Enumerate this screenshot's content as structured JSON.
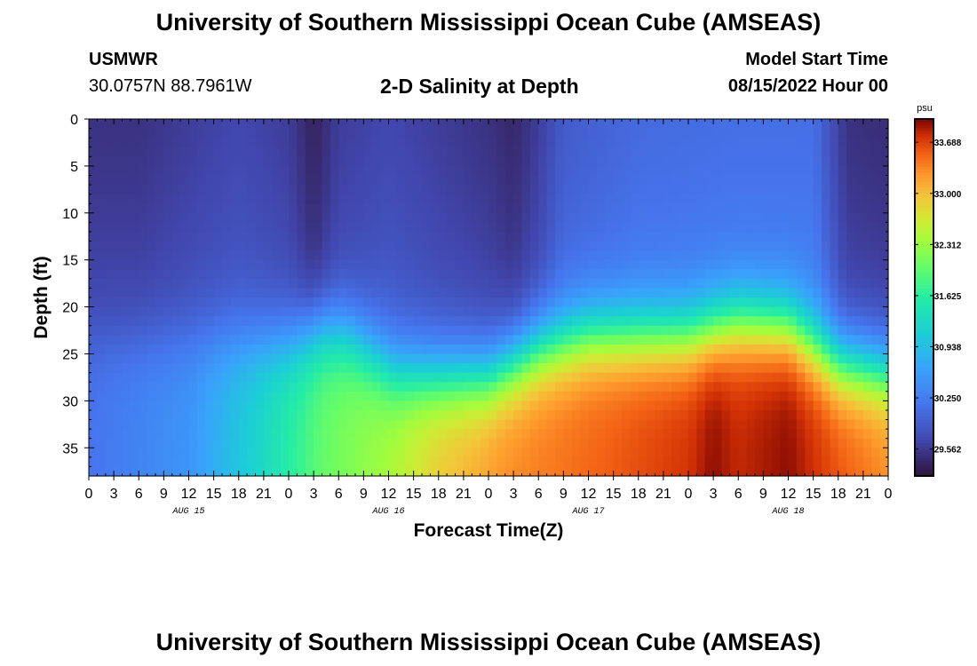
{
  "header": {
    "title": "University of Southern Mississippi Ocean Cube (AMSEAS)",
    "station": "USMWR",
    "coordinates": "30.0757N  88.7961W",
    "plot_title": "2-D Salinity at Depth",
    "start_label": "Model Start Time",
    "start_value": "08/15/2022 Hour 00"
  },
  "footer": {
    "title": "University of Southern Mississippi Ocean Cube (AMSEAS)"
  },
  "chart_data": {
    "type": "heatmap",
    "title": "2-D Salinity at Depth",
    "xlabel": "Forecast Time(Z)",
    "ylabel": "Depth (ft)",
    "x_range_hours": [
      0,
      96
    ],
    "y_range_ft": [
      0,
      38
    ],
    "x_ticks": [
      {
        "hour": 0,
        "label": "0"
      },
      {
        "hour": 3,
        "label": "3"
      },
      {
        "hour": 6,
        "label": "6"
      },
      {
        "hour": 9,
        "label": "9"
      },
      {
        "hour": 12,
        "label": "12"
      },
      {
        "hour": 15,
        "label": "15"
      },
      {
        "hour": 18,
        "label": "18"
      },
      {
        "hour": 21,
        "label": "21"
      },
      {
        "hour": 24,
        "label": "0"
      },
      {
        "hour": 27,
        "label": "3"
      },
      {
        "hour": 30,
        "label": "6"
      },
      {
        "hour": 33,
        "label": "9"
      },
      {
        "hour": 36,
        "label": "12"
      },
      {
        "hour": 39,
        "label": "15"
      },
      {
        "hour": 42,
        "label": "18"
      },
      {
        "hour": 45,
        "label": "21"
      },
      {
        "hour": 48,
        "label": "0"
      },
      {
        "hour": 51,
        "label": "3"
      },
      {
        "hour": 54,
        "label": "6"
      },
      {
        "hour": 57,
        "label": "9"
      },
      {
        "hour": 60,
        "label": "12"
      },
      {
        "hour": 63,
        "label": "15"
      },
      {
        "hour": 66,
        "label": "18"
      },
      {
        "hour": 69,
        "label": "21"
      },
      {
        "hour": 72,
        "label": "0"
      },
      {
        "hour": 75,
        "label": "3"
      },
      {
        "hour": 78,
        "label": "6"
      },
      {
        "hour": 81,
        "label": "9"
      },
      {
        "hour": 84,
        "label": "12"
      },
      {
        "hour": 87,
        "label": "15"
      },
      {
        "hour": 90,
        "label": "18"
      },
      {
        "hour": 93,
        "label": "21"
      },
      {
        "hour": 96,
        "label": "0"
      }
    ],
    "y_ticks": [
      0,
      5,
      10,
      15,
      20,
      25,
      30,
      35
    ],
    "day_labels": [
      {
        "hour": 12,
        "label": "AUG 15"
      },
      {
        "hour": 36,
        "label": "AUG 16"
      },
      {
        "hour": 60,
        "label": "AUG 17"
      },
      {
        "hour": 84,
        "label": "AUG 18"
      }
    ],
    "colorbar": {
      "unit": "psu",
      "min": 29.2,
      "max": 34.0,
      "ticks": [
        "33.688",
        "33.000",
        "32.312",
        "31.625",
        "30.938",
        "30.250",
        "29.562"
      ]
    },
    "surface_salinity_psu": [
      {
        "hour": 0,
        "value": 29.5
      },
      {
        "hour": 6,
        "value": 29.5
      },
      {
        "hour": 12,
        "value": 29.6
      },
      {
        "hour": 18,
        "value": 29.7
      },
      {
        "hour": 24,
        "value": 29.6
      },
      {
        "hour": 27,
        "value": 29.35
      },
      {
        "hour": 30,
        "value": 29.6
      },
      {
        "hour": 36,
        "value": 29.7
      },
      {
        "hour": 42,
        "value": 29.6
      },
      {
        "hour": 48,
        "value": 29.5
      },
      {
        "hour": 51,
        "value": 29.4
      },
      {
        "hour": 54,
        "value": 29.6
      },
      {
        "hour": 57,
        "value": 29.9
      },
      {
        "hour": 66,
        "value": 30.05
      },
      {
        "hour": 78,
        "value": 30.1
      },
      {
        "hour": 87,
        "value": 30.1
      },
      {
        "hour": 91,
        "value": 29.5
      },
      {
        "hour": 96,
        "value": 29.45
      }
    ],
    "halocline_depth_ft": [
      {
        "hour": 0,
        "value": 24
      },
      {
        "hour": 12,
        "value": 24
      },
      {
        "hour": 24,
        "value": 24
      },
      {
        "hour": 28,
        "value": 22.5
      },
      {
        "hour": 31,
        "value": 23
      },
      {
        "hour": 37,
        "value": 27
      },
      {
        "hour": 42,
        "value": 27.5
      },
      {
        "hour": 48,
        "value": 27.5
      },
      {
        "hour": 54,
        "value": 24.5
      },
      {
        "hour": 60,
        "value": 23
      },
      {
        "hour": 72,
        "value": 23
      },
      {
        "hour": 78,
        "value": 21.5
      },
      {
        "hour": 84,
        "value": 22
      },
      {
        "hour": 90,
        "value": 26
      },
      {
        "hour": 96,
        "value": 27
      }
    ],
    "bottom_salinity_psu": [
      {
        "hour": 0,
        "value": 30.15
      },
      {
        "hour": 12,
        "value": 30.5
      },
      {
        "hour": 20,
        "value": 31.2
      },
      {
        "hour": 28,
        "value": 32.0
      },
      {
        "hour": 36,
        "value": 32.4
      },
      {
        "hour": 42,
        "value": 32.9
      },
      {
        "hour": 50,
        "value": 33.3
      },
      {
        "hour": 60,
        "value": 33.5
      },
      {
        "hour": 72,
        "value": 33.75
      },
      {
        "hour": 75,
        "value": 33.95
      },
      {
        "hour": 78,
        "value": 33.8
      },
      {
        "hour": 84,
        "value": 33.95
      },
      {
        "hour": 90,
        "value": 33.6
      },
      {
        "hour": 96,
        "value": 33.3
      }
    ]
  }
}
